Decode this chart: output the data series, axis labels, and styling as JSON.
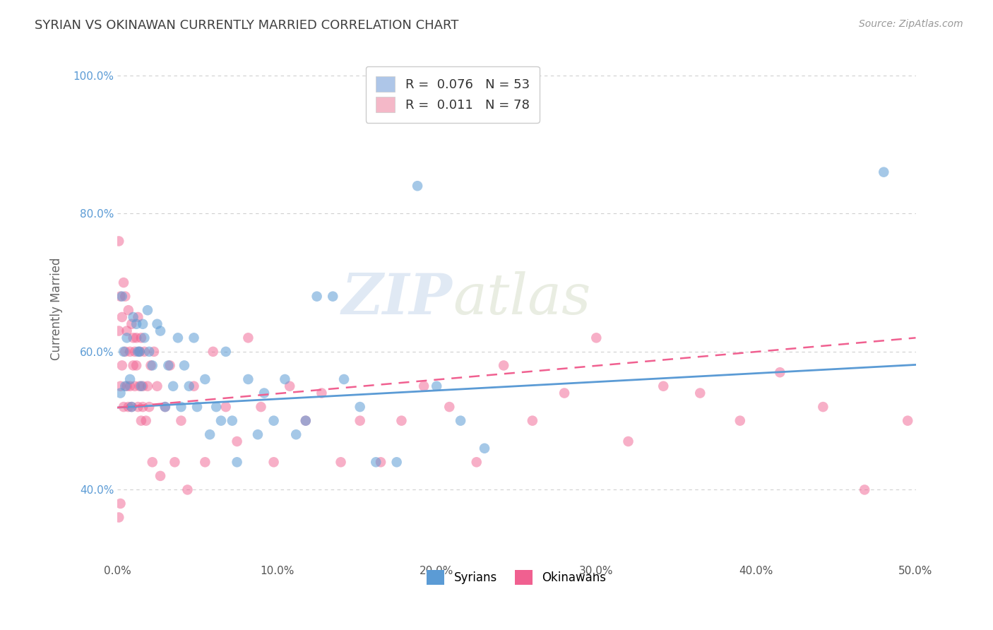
{
  "title": "SYRIAN VS OKINAWAN CURRENTLY MARRIED CORRELATION CHART",
  "source": "Source: ZipAtlas.com",
  "ylabel": "Currently Married",
  "xlim": [
    0.0,
    0.5
  ],
  "ylim": [
    0.295,
    1.03
  ],
  "xtick_vals": [
    0.0,
    0.1,
    0.2,
    0.3,
    0.4,
    0.5
  ],
  "xtick_labels": [
    "0.0%",
    "10.0%",
    "20.0%",
    "30.0%",
    "40.0%",
    "50.0%"
  ],
  "ytick_vals": [
    0.4,
    0.6,
    0.8,
    1.0
  ],
  "ytick_labels": [
    "40.0%",
    "60.0%",
    "80.0%",
    "100.0%"
  ],
  "legend_entries": [
    {
      "label": "R =  0.076   N = 53",
      "color": "#aec6e8"
    },
    {
      "label": "R =  0.011   N = 78",
      "color": "#f4b8c8"
    }
  ],
  "syrians_color": "#5b9bd5",
  "okinawans_color": "#f06090",
  "syrians_alpha": 0.55,
  "okinawans_alpha": 0.5,
  "watermark_zip": "ZIP",
  "watermark_atlas": "atlas",
  "background_color": "#ffffff",
  "grid_color": "#d0d0d0",
  "title_color": "#404040",
  "syrians_x": [
    0.002,
    0.003,
    0.004,
    0.005,
    0.006,
    0.008,
    0.009,
    0.01,
    0.012,
    0.013,
    0.014,
    0.015,
    0.016,
    0.017,
    0.019,
    0.02,
    0.022,
    0.025,
    0.027,
    0.03,
    0.032,
    0.035,
    0.038,
    0.04,
    0.042,
    0.045,
    0.048,
    0.05,
    0.055,
    0.058,
    0.062,
    0.065,
    0.068,
    0.072,
    0.075,
    0.082,
    0.088,
    0.092,
    0.098,
    0.105,
    0.112,
    0.118,
    0.125,
    0.135,
    0.142,
    0.152,
    0.162,
    0.175,
    0.188,
    0.2,
    0.215,
    0.23,
    0.48
  ],
  "syrians_y": [
    0.54,
    0.68,
    0.6,
    0.55,
    0.62,
    0.56,
    0.52,
    0.65,
    0.64,
    0.6,
    0.6,
    0.55,
    0.64,
    0.62,
    0.66,
    0.6,
    0.58,
    0.64,
    0.63,
    0.52,
    0.58,
    0.55,
    0.62,
    0.52,
    0.58,
    0.55,
    0.62,
    0.52,
    0.56,
    0.48,
    0.52,
    0.5,
    0.6,
    0.5,
    0.44,
    0.56,
    0.48,
    0.54,
    0.5,
    0.56,
    0.48,
    0.5,
    0.68,
    0.68,
    0.56,
    0.52,
    0.44,
    0.44,
    0.84,
    0.55,
    0.5,
    0.46,
    0.86
  ],
  "okinawans_x": [
    0.001,
    0.001,
    0.002,
    0.002,
    0.003,
    0.003,
    0.004,
    0.004,
    0.005,
    0.005,
    0.006,
    0.006,
    0.007,
    0.007,
    0.008,
    0.008,
    0.009,
    0.009,
    0.01,
    0.01,
    0.011,
    0.011,
    0.012,
    0.012,
    0.013,
    0.013,
    0.014,
    0.014,
    0.015,
    0.015,
    0.016,
    0.016,
    0.017,
    0.018,
    0.019,
    0.02,
    0.021,
    0.022,
    0.023,
    0.025,
    0.027,
    0.03,
    0.033,
    0.036,
    0.04,
    0.044,
    0.048,
    0.055,
    0.06,
    0.068,
    0.075,
    0.082,
    0.09,
    0.098,
    0.108,
    0.118,
    0.128,
    0.14,
    0.152,
    0.165,
    0.178,
    0.192,
    0.208,
    0.225,
    0.242,
    0.26,
    0.28,
    0.3,
    0.32,
    0.342,
    0.365,
    0.39,
    0.415,
    0.442,
    0.468,
    0.495,
    0.001,
    0.002
  ],
  "okinawans_y": [
    0.76,
    0.63,
    0.68,
    0.55,
    0.65,
    0.58,
    0.7,
    0.52,
    0.68,
    0.6,
    0.63,
    0.55,
    0.66,
    0.52,
    0.6,
    0.55,
    0.64,
    0.52,
    0.62,
    0.58,
    0.6,
    0.55,
    0.58,
    0.62,
    0.52,
    0.65,
    0.55,
    0.6,
    0.5,
    0.62,
    0.52,
    0.55,
    0.6,
    0.5,
    0.55,
    0.52,
    0.58,
    0.44,
    0.6,
    0.55,
    0.42,
    0.52,
    0.58,
    0.44,
    0.5,
    0.4,
    0.55,
    0.44,
    0.6,
    0.52,
    0.47,
    0.62,
    0.52,
    0.44,
    0.55,
    0.5,
    0.54,
    0.44,
    0.5,
    0.44,
    0.5,
    0.55,
    0.52,
    0.44,
    0.58,
    0.5,
    0.54,
    0.62,
    0.47,
    0.55,
    0.54,
    0.5,
    0.57,
    0.52,
    0.4,
    0.5,
    0.36,
    0.38
  ]
}
